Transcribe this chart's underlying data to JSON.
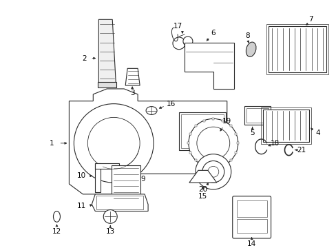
{
  "bg_color": "#ffffff",
  "line_color": "#2a2a2a",
  "text_color": "#000000",
  "figsize": [
    4.89,
    3.6
  ],
  "dpi": 100
}
